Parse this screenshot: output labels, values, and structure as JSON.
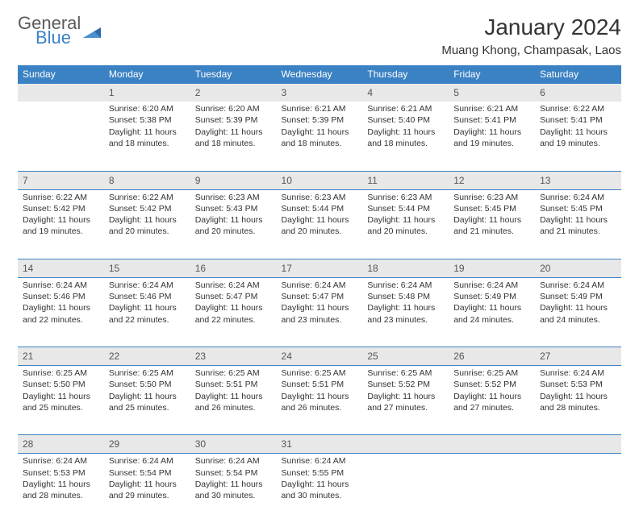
{
  "logo": {
    "line1": "General",
    "line2": "Blue"
  },
  "title": "January 2024",
  "location": "Muang Khong, Champasak, Laos",
  "colors": {
    "header_bg": "#3b82c4",
    "header_text": "#ffffff",
    "daynum_bg": "#e8e8e8",
    "rule": "#3b82c4",
    "text": "#333333"
  },
  "daysOfWeek": [
    "Sunday",
    "Monday",
    "Tuesday",
    "Wednesday",
    "Thursday",
    "Friday",
    "Saturday"
  ],
  "weeks": [
    [
      null,
      {
        "n": "1",
        "sr": "6:20 AM",
        "ss": "5:38 PM",
        "dl": "11 hours and 18 minutes."
      },
      {
        "n": "2",
        "sr": "6:20 AM",
        "ss": "5:39 PM",
        "dl": "11 hours and 18 minutes."
      },
      {
        "n": "3",
        "sr": "6:21 AM",
        "ss": "5:39 PM",
        "dl": "11 hours and 18 minutes."
      },
      {
        "n": "4",
        "sr": "6:21 AM",
        "ss": "5:40 PM",
        "dl": "11 hours and 18 minutes."
      },
      {
        "n": "5",
        "sr": "6:21 AM",
        "ss": "5:41 PM",
        "dl": "11 hours and 19 minutes."
      },
      {
        "n": "6",
        "sr": "6:22 AM",
        "ss": "5:41 PM",
        "dl": "11 hours and 19 minutes."
      }
    ],
    [
      {
        "n": "7",
        "sr": "6:22 AM",
        "ss": "5:42 PM",
        "dl": "11 hours and 19 minutes."
      },
      {
        "n": "8",
        "sr": "6:22 AM",
        "ss": "5:42 PM",
        "dl": "11 hours and 20 minutes."
      },
      {
        "n": "9",
        "sr": "6:23 AM",
        "ss": "5:43 PM",
        "dl": "11 hours and 20 minutes."
      },
      {
        "n": "10",
        "sr": "6:23 AM",
        "ss": "5:44 PM",
        "dl": "11 hours and 20 minutes."
      },
      {
        "n": "11",
        "sr": "6:23 AM",
        "ss": "5:44 PM",
        "dl": "11 hours and 20 minutes."
      },
      {
        "n": "12",
        "sr": "6:23 AM",
        "ss": "5:45 PM",
        "dl": "11 hours and 21 minutes."
      },
      {
        "n": "13",
        "sr": "6:24 AM",
        "ss": "5:45 PM",
        "dl": "11 hours and 21 minutes."
      }
    ],
    [
      {
        "n": "14",
        "sr": "6:24 AM",
        "ss": "5:46 PM",
        "dl": "11 hours and 22 minutes."
      },
      {
        "n": "15",
        "sr": "6:24 AM",
        "ss": "5:46 PM",
        "dl": "11 hours and 22 minutes."
      },
      {
        "n": "16",
        "sr": "6:24 AM",
        "ss": "5:47 PM",
        "dl": "11 hours and 22 minutes."
      },
      {
        "n": "17",
        "sr": "6:24 AM",
        "ss": "5:47 PM",
        "dl": "11 hours and 23 minutes."
      },
      {
        "n": "18",
        "sr": "6:24 AM",
        "ss": "5:48 PM",
        "dl": "11 hours and 23 minutes."
      },
      {
        "n": "19",
        "sr": "6:24 AM",
        "ss": "5:49 PM",
        "dl": "11 hours and 24 minutes."
      },
      {
        "n": "20",
        "sr": "6:24 AM",
        "ss": "5:49 PM",
        "dl": "11 hours and 24 minutes."
      }
    ],
    [
      {
        "n": "21",
        "sr": "6:25 AM",
        "ss": "5:50 PM",
        "dl": "11 hours and 25 minutes."
      },
      {
        "n": "22",
        "sr": "6:25 AM",
        "ss": "5:50 PM",
        "dl": "11 hours and 25 minutes."
      },
      {
        "n": "23",
        "sr": "6:25 AM",
        "ss": "5:51 PM",
        "dl": "11 hours and 26 minutes."
      },
      {
        "n": "24",
        "sr": "6:25 AM",
        "ss": "5:51 PM",
        "dl": "11 hours and 26 minutes."
      },
      {
        "n": "25",
        "sr": "6:25 AM",
        "ss": "5:52 PM",
        "dl": "11 hours and 27 minutes."
      },
      {
        "n": "26",
        "sr": "6:25 AM",
        "ss": "5:52 PM",
        "dl": "11 hours and 27 minutes."
      },
      {
        "n": "27",
        "sr": "6:24 AM",
        "ss": "5:53 PM",
        "dl": "11 hours and 28 minutes."
      }
    ],
    [
      {
        "n": "28",
        "sr": "6:24 AM",
        "ss": "5:53 PM",
        "dl": "11 hours and 28 minutes."
      },
      {
        "n": "29",
        "sr": "6:24 AM",
        "ss": "5:54 PM",
        "dl": "11 hours and 29 minutes."
      },
      {
        "n": "30",
        "sr": "6:24 AM",
        "ss": "5:54 PM",
        "dl": "11 hours and 30 minutes."
      },
      {
        "n": "31",
        "sr": "6:24 AM",
        "ss": "5:55 PM",
        "dl": "11 hours and 30 minutes."
      },
      null,
      null,
      null
    ]
  ],
  "labels": {
    "sunrise": "Sunrise:",
    "sunset": "Sunset:",
    "daylight": "Daylight:"
  }
}
